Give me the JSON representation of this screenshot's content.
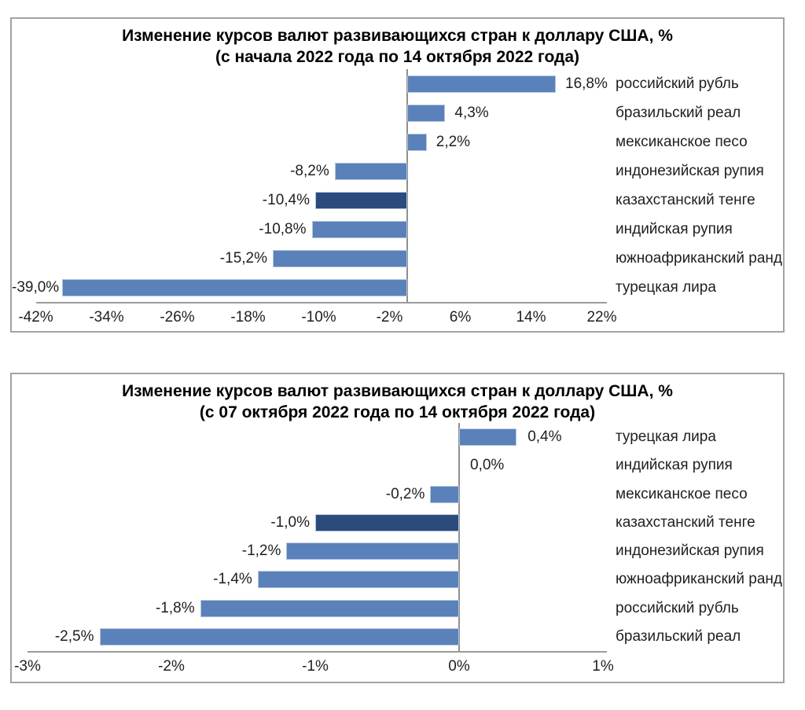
{
  "page": {
    "background": "#ffffff"
  },
  "colors": {
    "bar": "#5b81ba",
    "bar_highlight": "#2a4b7c",
    "bar_border": "#b3c6e0",
    "axis_line": "#969696",
    "panel_border": "#a3a3a3",
    "text": "#1f1f1f"
  },
  "chart_data": [
    {
      "type": "bar",
      "orientation": "horizontal",
      "title": "Изменение курсов валют развивающихся стран к доллару США, %",
      "subtitle": "(с начала 2022 года по 14 октября 2022 года)",
      "categories": [
        "российский рубль",
        "бразильский реал",
        "мексиканское песо",
        "индонезийская рупия",
        "казахстанский тенге",
        "индийская рупия",
        "южноафриканский ранд",
        "турецкая лира"
      ],
      "values": [
        16.8,
        4.3,
        2.2,
        -8.2,
        -10.4,
        -10.8,
        -15.2,
        -39.0
      ],
      "value_labels": [
        "16,8%",
        "4,3%",
        "2,2%",
        "-8,2%",
        "-10,4%",
        "-10,8%",
        "-15,2%",
        "-39,0%"
      ],
      "highlight_category": "казахстанский тенге",
      "highlight_index": 4,
      "x_ticks": [
        "-42%",
        "-34%",
        "-26%",
        "-18%",
        "-10%",
        "-2%",
        "6%",
        "14%",
        "22%"
      ],
      "x_tick_values": [
        -42,
        -34,
        -26,
        -18,
        -10,
        -2,
        6,
        14,
        22
      ],
      "xlim": [
        -42,
        22
      ],
      "grid": false,
      "legend": false
    },
    {
      "type": "bar",
      "orientation": "horizontal",
      "title": "Изменение курсов валют развивающихся стран к доллару США, %",
      "subtitle": "(с 07 октября 2022 года по 14 октября 2022 года)",
      "categories": [
        "турецкая лира",
        "индийская рупия",
        "мексиканское песо",
        "казахстанский тенге",
        "индонезийская рупия",
        "южноафриканский ранд",
        "российский рубль",
        "бразильский реал"
      ],
      "values": [
        0.4,
        0.0,
        -0.2,
        -1.0,
        -1.2,
        -1.4,
        -1.8,
        -2.5
      ],
      "value_labels": [
        "0,4%",
        "0,0%",
        "-0,2%",
        "-1,0%",
        "-1,2%",
        "-1,4%",
        "-1,8%",
        "-2,5%"
      ],
      "highlight_category": "казахстанский тенге",
      "highlight_index": 3,
      "x_ticks": [
        "-3%",
        "-2%",
        "-1%",
        "0%",
        "1%"
      ],
      "x_tick_values": [
        -3,
        -2,
        -1,
        0,
        1
      ],
      "xlim": [
        -3,
        1
      ],
      "grid": false,
      "legend": false
    }
  ]
}
